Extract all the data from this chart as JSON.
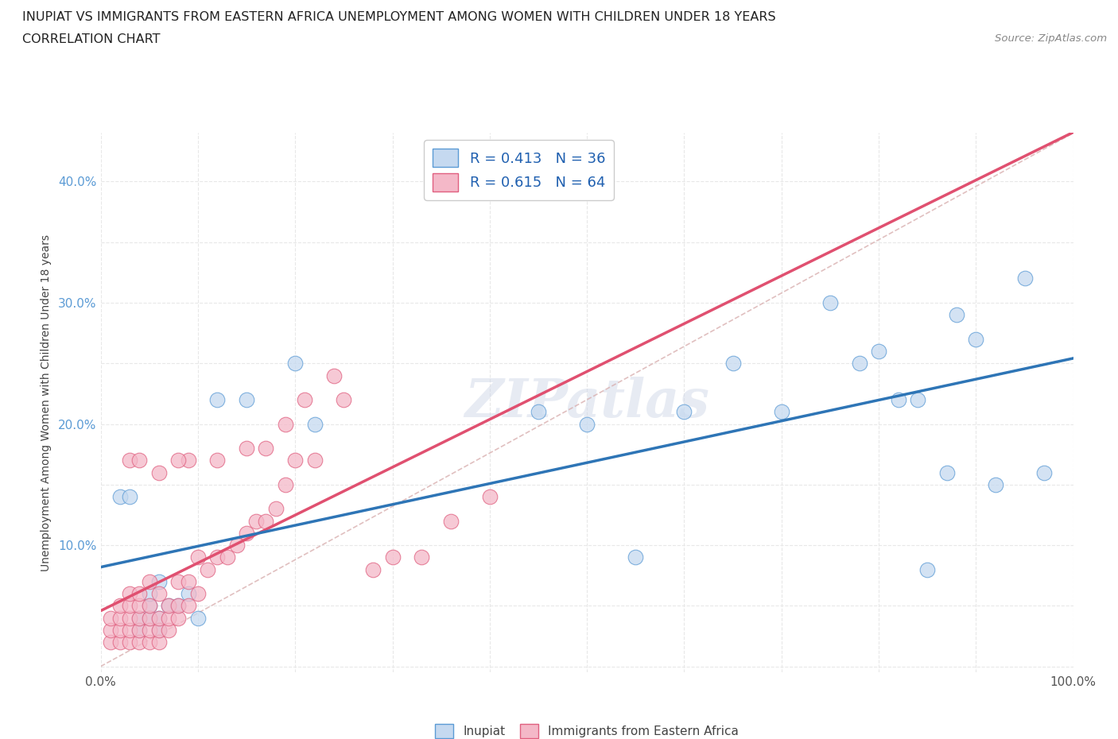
{
  "title_line1": "INUPIAT VS IMMIGRANTS FROM EASTERN AFRICA UNEMPLOYMENT AMONG WOMEN WITH CHILDREN UNDER 18 YEARS",
  "title_line2": "CORRELATION CHART",
  "source": "Source: ZipAtlas.com",
  "ylabel": "Unemployment Among Women with Children Under 18 years",
  "xlim": [
    0,
    1.0
  ],
  "ylim": [
    -0.005,
    0.44
  ],
  "xtick_positions": [
    0.0,
    0.1,
    0.2,
    0.3,
    0.4,
    0.5,
    0.6,
    0.7,
    0.8,
    0.9,
    1.0
  ],
  "xtick_labels": [
    "0.0%",
    "",
    "",
    "",
    "",
    "",
    "",
    "",
    "",
    "",
    "100.0%"
  ],
  "ytick_positions": [
    0.0,
    0.05,
    0.1,
    0.15,
    0.2,
    0.25,
    0.3,
    0.35,
    0.4
  ],
  "ytick_labels": [
    "",
    "",
    "10.0%",
    "",
    "20.0%",
    "",
    "30.0%",
    "",
    "40.0%"
  ],
  "legend_R1": "R = 0.413",
  "legend_N1": "N = 36",
  "legend_R2": "R = 0.615",
  "legend_N2": "N = 64",
  "color_inupiat_fill": "#c5d9f0",
  "color_inupiat_edge": "#5b9bd5",
  "color_immigrants_fill": "#f4b8c8",
  "color_immigrants_edge": "#e06080",
  "color_line_inupiat": "#2e75b6",
  "color_line_immigrants": "#e05070",
  "color_dashed": "#d9b0b0",
  "watermark": "ZIPatlas",
  "background_color": "#ffffff",
  "grid_color": "#e8e8e8",
  "inupiat_x": [
    0.02,
    0.03,
    0.04,
    0.04,
    0.05,
    0.05,
    0.05,
    0.06,
    0.06,
    0.06,
    0.07,
    0.08,
    0.09,
    0.1,
    0.12,
    0.15,
    0.2,
    0.22,
    0.45,
    0.5,
    0.55,
    0.6,
    0.65,
    0.7,
    0.75,
    0.78,
    0.8,
    0.82,
    0.84,
    0.85,
    0.87,
    0.88,
    0.9,
    0.92,
    0.95,
    0.97
  ],
  "inupiat_y": [
    0.14,
    0.14,
    0.03,
    0.04,
    0.04,
    0.05,
    0.06,
    0.03,
    0.04,
    0.07,
    0.05,
    0.05,
    0.06,
    0.04,
    0.22,
    0.22,
    0.25,
    0.2,
    0.21,
    0.2,
    0.09,
    0.21,
    0.25,
    0.21,
    0.3,
    0.25,
    0.26,
    0.22,
    0.22,
    0.08,
    0.16,
    0.29,
    0.27,
    0.15,
    0.32,
    0.16
  ],
  "immigrants_x": [
    0.01,
    0.01,
    0.01,
    0.02,
    0.02,
    0.02,
    0.02,
    0.03,
    0.03,
    0.03,
    0.03,
    0.03,
    0.04,
    0.04,
    0.04,
    0.04,
    0.04,
    0.05,
    0.05,
    0.05,
    0.05,
    0.05,
    0.06,
    0.06,
    0.06,
    0.06,
    0.07,
    0.07,
    0.07,
    0.08,
    0.08,
    0.08,
    0.09,
    0.09,
    0.1,
    0.1,
    0.11,
    0.12,
    0.13,
    0.14,
    0.15,
    0.16,
    0.17,
    0.18,
    0.19,
    0.2,
    0.22,
    0.25,
    0.28,
    0.3,
    0.33,
    0.36,
    0.4,
    0.09,
    0.12,
    0.15,
    0.17,
    0.19,
    0.21,
    0.24,
    0.03,
    0.04,
    0.06,
    0.08
  ],
  "immigrants_y": [
    0.02,
    0.03,
    0.04,
    0.02,
    0.03,
    0.04,
    0.05,
    0.02,
    0.03,
    0.04,
    0.05,
    0.06,
    0.02,
    0.03,
    0.04,
    0.05,
    0.06,
    0.02,
    0.03,
    0.04,
    0.05,
    0.07,
    0.02,
    0.03,
    0.04,
    0.06,
    0.03,
    0.04,
    0.05,
    0.04,
    0.05,
    0.07,
    0.05,
    0.07,
    0.06,
    0.09,
    0.08,
    0.09,
    0.09,
    0.1,
    0.11,
    0.12,
    0.12,
    0.13,
    0.15,
    0.17,
    0.17,
    0.22,
    0.08,
    0.09,
    0.09,
    0.12,
    0.14,
    0.17,
    0.17,
    0.18,
    0.18,
    0.2,
    0.22,
    0.24,
    0.17,
    0.17,
    0.16,
    0.17
  ]
}
